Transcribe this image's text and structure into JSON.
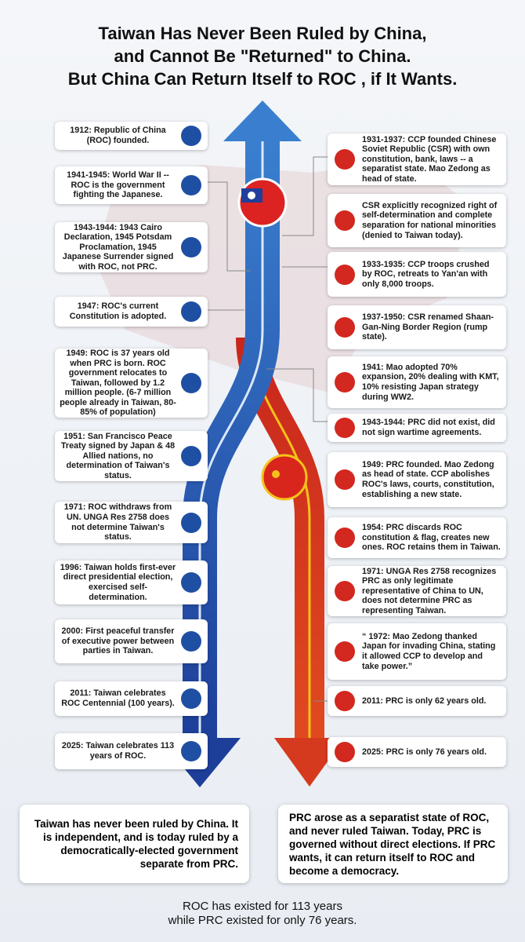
{
  "title": {
    "lines": [
      "Taiwan Has Never Been Ruled by China,",
      "and Cannot Be \"Returned\" to China.",
      "But China Can Return Itself to ROC , if It Wants."
    ]
  },
  "left_events": [
    "1912: Republic of China (ROC) founded.",
    "1941-1945: World War II -- ROC is the government fighting the Japanese.",
    "1943-1944: 1943 Cairo Declaration, 1945 Potsdam Proclamation, 1945 Japanese Surrender signed with ROC, not PRC.",
    "1947: ROC's current Constitution is adopted.",
    "1949: ROC is 37 years old when PRC is born. ROC government relocates to Taiwan, followed by 1.2 million people. (6-7 million people already in Taiwan, 80-85% of population)",
    "1951: San Francisco Peace Treaty signed by Japan & 48 Allied nations, no determination of Taiwan's status.",
    "1971: ROC withdraws from UN. UNGA Res 2758 does not determine Taiwan's status.",
    "1996: Taiwan holds first-ever direct presidential election, exercised self-determination.",
    "2000: First peaceful transfer of executive power between parties in Taiwan.",
    "2011: Taiwan celebrates ROC Centennial (100 years).",
    "2025: Taiwan celebrates 113 years of ROC."
  ],
  "right_events": [
    "1931-1937: CCP founded Chinese Soviet Republic (CSR) with own constitution, bank, laws -- a separatist state. Mao Zedong as head of state.",
    "CSR explicitly recognized right of self-determination and complete separation for national minorities (denied to Taiwan today).",
    "1933-1935: CCP troops crushed by ROC, retreats to Yan'an with only 8,000 troops.",
    "1937-1950: CSR renamed Shaan-Gan-Ning Border Region (rump state).",
    "1941: Mao adopted 70% expansion, 20% dealing with KMT, 10% resisting Japan strategy during WW2.",
    "1943-1944: PRC did not exist, did not sign wartime agreements.",
    "1949: PRC founded. Mao Zedong as head of state. CCP abolishes ROC's laws, courts, constitution, establishing a new state.",
    "1954: PRC discards ROC constitution & flag, creates new ones. ROC retains them in Taiwan.",
    "1971: UNGA Res 2758 recognizes PRC as only legitimate representative of China to UN, does not determine PRC as representing Taiwan.",
    "“ 1972: Mao Zedong thanked Japan for invading China, stating it allowed CCP to develop and take power.”",
    "2011: PRC is only 62 years old.",
    "2025: PRC is only 76 years old."
  ],
  "left_summary": "Taiwan has never been ruled by China. It is independent, and is today ruled by a democratically-elected government separate from PRC.",
  "right_summary": "PRC arose as a separatist state of ROC, and never ruled Taiwan. Today, PRC is governed without direct elections. If PRC wants, it can return itself to ROC and become a democracy.",
  "footer": {
    "lines": [
      "ROC has existed for 113 years",
      "while PRC existed for only 76 years."
    ]
  }
}
